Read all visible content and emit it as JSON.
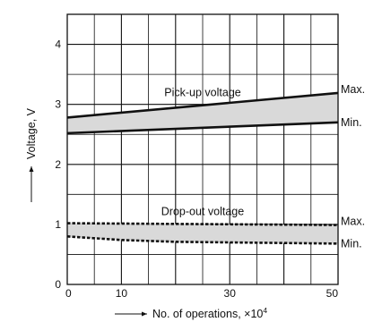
{
  "chart_data": {
    "type": "line",
    "xlabel": "No. of operations, ×10",
    "xlabel_sup": "4",
    "ylabel": "Voltage, V",
    "x_ticks": [
      "0",
      "10",
      "30",
      "50"
    ],
    "y_ticks": [
      "0",
      "1",
      "2",
      "3",
      "4"
    ],
    "xlim": [
      0,
      50
    ],
    "ylim": [
      0,
      4.5
    ],
    "grid": true,
    "bands": [
      {
        "name": "Pick-up voltage",
        "style": "solid",
        "fill": "#d9d9d9",
        "max": {
          "label": "Max.",
          "x": [
            0,
            50
          ],
          "y": [
            2.78,
            3.19
          ]
        },
        "min": {
          "label": "Min.",
          "x": [
            0,
            50
          ],
          "y": [
            2.52,
            2.7
          ]
        }
      },
      {
        "name": "Drop-out voltage",
        "style": "dotted",
        "fill": "#d9d9d9",
        "max": {
          "label": "Max.",
          "x": [
            0,
            50
          ],
          "y": [
            1.02,
            0.99
          ]
        },
        "min": {
          "label": "Min.",
          "x": [
            0,
            10,
            20,
            30,
            40,
            50
          ],
          "y": [
            0.8,
            0.74,
            0.71,
            0.7,
            0.69,
            0.68
          ]
        }
      }
    ]
  }
}
